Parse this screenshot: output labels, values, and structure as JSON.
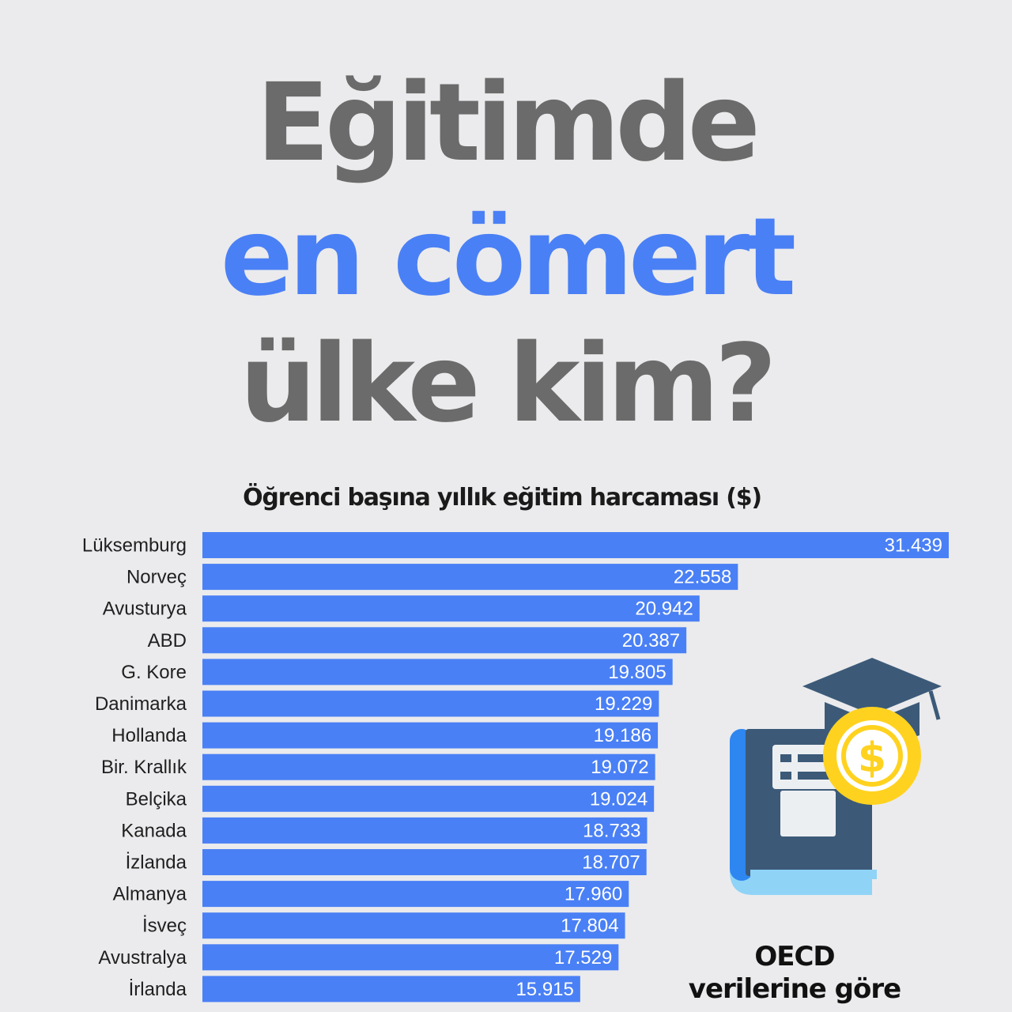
{
  "title": {
    "line1": "Eğitimde",
    "line2": "en cömert",
    "line3": "ülke kim?"
  },
  "colors": {
    "accent": "#4a80f5",
    "title_gray": "#6b6b6b",
    "background": "#ebebed",
    "icon_navy": "#3c5a78",
    "icon_blue": "#2e86f0",
    "icon_light": "#8fd3f7",
    "coin": "#ffd21f"
  },
  "icon": {
    "name": "education-funding-icon"
  },
  "note": {
    "line1": "OECD",
    "line2": "verilerine göre"
  },
  "chart_data": {
    "type": "bar",
    "orientation": "horizontal",
    "title": "Öğrenci başına yıllık eğitim harcaması ($)",
    "xlabel": "",
    "ylabel": "",
    "xlim": [
      0,
      31439
    ],
    "grid": false,
    "categories": [
      "Lüksemburg",
      "Norveç",
      "Avusturya",
      "ABD",
      "G. Kore",
      "Danimarka",
      "Hollanda",
      "Bir. Krallık",
      "Belçika",
      "Kanada",
      "İzlanda",
      "Almanya",
      "İsveç",
      "Avustralya",
      "İrlanda"
    ],
    "values": [
      31439,
      22558,
      20942,
      20387,
      19805,
      19229,
      19186,
      19072,
      19024,
      18733,
      18707,
      17960,
      17804,
      17529,
      15915
    ],
    "value_labels": [
      "31.439",
      "22.558",
      "20.942",
      "20.387",
      "19.805",
      "19.229",
      "19.186",
      "19.072",
      "19.024",
      "18.733",
      "18.707",
      "17.960",
      "17.804",
      "17.529",
      "15.915"
    ]
  }
}
